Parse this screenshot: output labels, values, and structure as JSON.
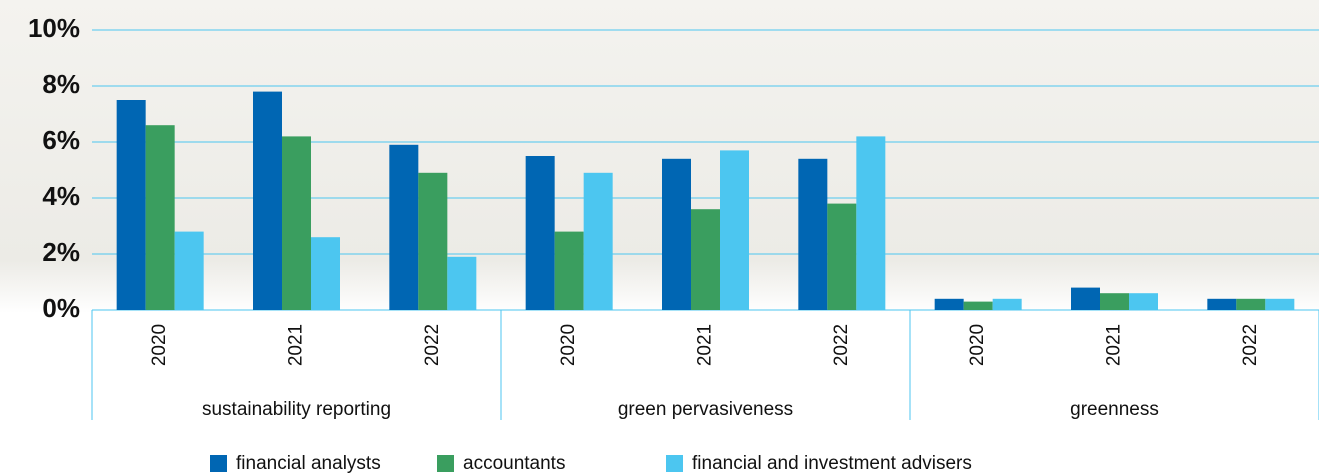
{
  "chart_data": {
    "type": "bar",
    "categories": [
      "2020",
      "2021",
      "2022",
      "2020",
      "2021",
      "2022",
      "2020",
      "2021",
      "2022"
    ],
    "groups": [
      "sustainability reporting",
      "green pervasiveness",
      "greenness"
    ],
    "series": [
      {
        "name": "financial analysts",
        "color": "#0066b3",
        "values": [
          7.5,
          7.8,
          5.9,
          5.5,
          5.4,
          5.4,
          0.4,
          0.8,
          0.4
        ]
      },
      {
        "name": "accountants",
        "color": "#3a9e5f",
        "values": [
          6.6,
          6.2,
          4.9,
          2.8,
          3.6,
          3.8,
          0.3,
          0.6,
          0.4
        ]
      },
      {
        "name": "financial and investment advisers",
        "color": "#4cc6f0",
        "values": [
          2.8,
          2.6,
          1.9,
          4.9,
          5.7,
          6.2,
          0.4,
          0.6,
          0.4
        ]
      }
    ],
    "ylim": [
      0,
      10
    ],
    "yticks": [
      {
        "value": 0,
        "label": "0%"
      },
      {
        "value": 2,
        "label": "2%"
      },
      {
        "value": 4,
        "label": "4%"
      },
      {
        "value": 6,
        "label": "6%"
      },
      {
        "value": 8,
        "label": "8%"
      },
      {
        "value": 10,
        "label": "10%"
      }
    ],
    "grid": true
  }
}
